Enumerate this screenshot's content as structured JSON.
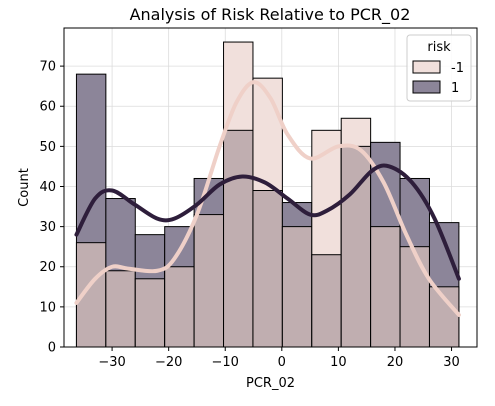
{
  "chart_data": {
    "type": "histogram",
    "title": "Analysis of Risk Relative to PCR_02",
    "xlabel": "PCR_02",
    "ylabel": "Count",
    "xlim": [
      -38.5,
      34.5
    ],
    "ylim": [
      0,
      79.5
    ],
    "x_ticks": [
      -30,
      -20,
      -10,
      0,
      10,
      20,
      30
    ],
    "y_ticks": [
      0,
      10,
      20,
      30,
      40,
      50,
      60,
      70
    ],
    "grid": true,
    "legend": {
      "title": "risk",
      "placement": "top-right"
    },
    "bin_edges": [
      -36.3,
      -31.1,
      -25.9,
      -20.7,
      -15.5,
      -10.3,
      -5.1,
      0.1,
      5.3,
      10.5,
      15.7,
      20.9,
      26.1,
      31.3
    ],
    "series": [
      {
        "name": "-1",
        "color": "#f1e0dc",
        "kde_color": "#efd0c8",
        "values": [
          26,
          19,
          17,
          20,
          33,
          76,
          67,
          30,
          54,
          57,
          30,
          25,
          15
        ],
        "kde": [
          [
            -36.3,
            11
          ],
          [
            -33,
            17
          ],
          [
            -30,
            20
          ],
          [
            -27,
            19.5
          ],
          [
            -22,
            19
          ],
          [
            -19,
            22
          ],
          [
            -15,
            33
          ],
          [
            -11,
            50
          ],
          [
            -8,
            61
          ],
          [
            -5,
            66
          ],
          [
            -2,
            62
          ],
          [
            1,
            53
          ],
          [
            5,
            47
          ],
          [
            10,
            50
          ],
          [
            14,
            49
          ],
          [
            18,
            41
          ],
          [
            22,
            28
          ],
          [
            26,
            17
          ],
          [
            31.3,
            8
          ]
        ]
      },
      {
        "name": "1",
        "color": "#8c8599",
        "kde_color": "#2e1e3b",
        "values": [
          68,
          37,
          28,
          30,
          42,
          54,
          39,
          36,
          23,
          50,
          51,
          42,
          31
        ],
        "kde": [
          [
            -36.3,
            28
          ],
          [
            -33,
            37
          ],
          [
            -30,
            39
          ],
          [
            -26,
            35.5
          ],
          [
            -22,
            32
          ],
          [
            -19,
            32
          ],
          [
            -15,
            35.5
          ],
          [
            -11,
            40.5
          ],
          [
            -7,
            42.5
          ],
          [
            -3,
            41
          ],
          [
            1,
            37
          ],
          [
            5,
            33
          ],
          [
            8,
            34
          ],
          [
            12,
            38
          ],
          [
            16,
            44
          ],
          [
            19,
            45
          ],
          [
            23,
            41
          ],
          [
            27,
            32
          ],
          [
            31.3,
            17
          ]
        ]
      }
    ]
  }
}
